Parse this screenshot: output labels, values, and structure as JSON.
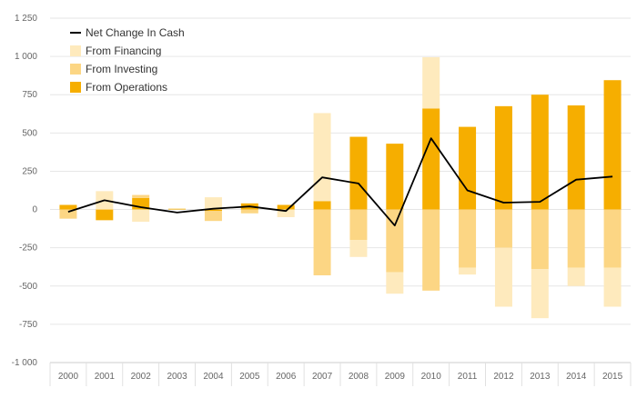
{
  "colors": {
    "operations": "#f6ae00",
    "investing": "#fcd684",
    "financing": "#feeabd",
    "net_line": "#000000",
    "grid": "#e6e6e6",
    "tick_text": "#666666",
    "legend_text": "#333333"
  },
  "chart_data": {
    "type": "bar",
    "stacked": true,
    "categories": [
      "2000",
      "2001",
      "2002",
      "2003",
      "2004",
      "2005",
      "2006",
      "2007",
      "2008",
      "2009",
      "2010",
      "2011",
      "2012",
      "2013",
      "2014",
      "2015"
    ],
    "series": [
      {
        "name": "From Operations",
        "kind": "bar",
        "color_key": "operations",
        "values": [
          30,
          -70,
          75,
          5,
          -10,
          40,
          30,
          55,
          475,
          430,
          660,
          540,
          675,
          750,
          680,
          845
        ]
      },
      {
        "name": "From Investing",
        "kind": "bar",
        "color_key": "investing",
        "values": [
          -60,
          0,
          20,
          0,
          -65,
          -25,
          0,
          -430,
          -200,
          -410,
          -530,
          -380,
          -250,
          -390,
          -380,
          -380
        ]
      },
      {
        "name": "From Financing",
        "kind": "bar",
        "color_key": "financing",
        "values": [
          0,
          120,
          -80,
          0,
          80,
          0,
          -50,
          575,
          -110,
          -140,
          335,
          -45,
          -385,
          -320,
          -120,
          -255
        ]
      },
      {
        "name": "Net Change In Cash",
        "kind": "line",
        "color_key": "net_line",
        "values": [
          -15,
          60,
          15,
          -20,
          5,
          20,
          -10,
          210,
          170,
          -105,
          465,
          125,
          45,
          50,
          195,
          215
        ]
      }
    ],
    "legend": {
      "placement": "top-left",
      "entries": [
        "Net Change In Cash",
        "From Financing",
        "From Investing",
        "From Operations"
      ]
    },
    "title": "",
    "xlabel": "",
    "ylabel": "",
    "ylim": [
      -1000,
      1250
    ],
    "yticks": [
      -1000,
      -750,
      -500,
      -250,
      0,
      250,
      500,
      750,
      1000,
      1250
    ],
    "ytick_labels": [
      "-1 000",
      "-750",
      "-500",
      "-250",
      "0",
      "250",
      "500",
      "750",
      "1 000",
      "1 250"
    ],
    "grid": true
  }
}
